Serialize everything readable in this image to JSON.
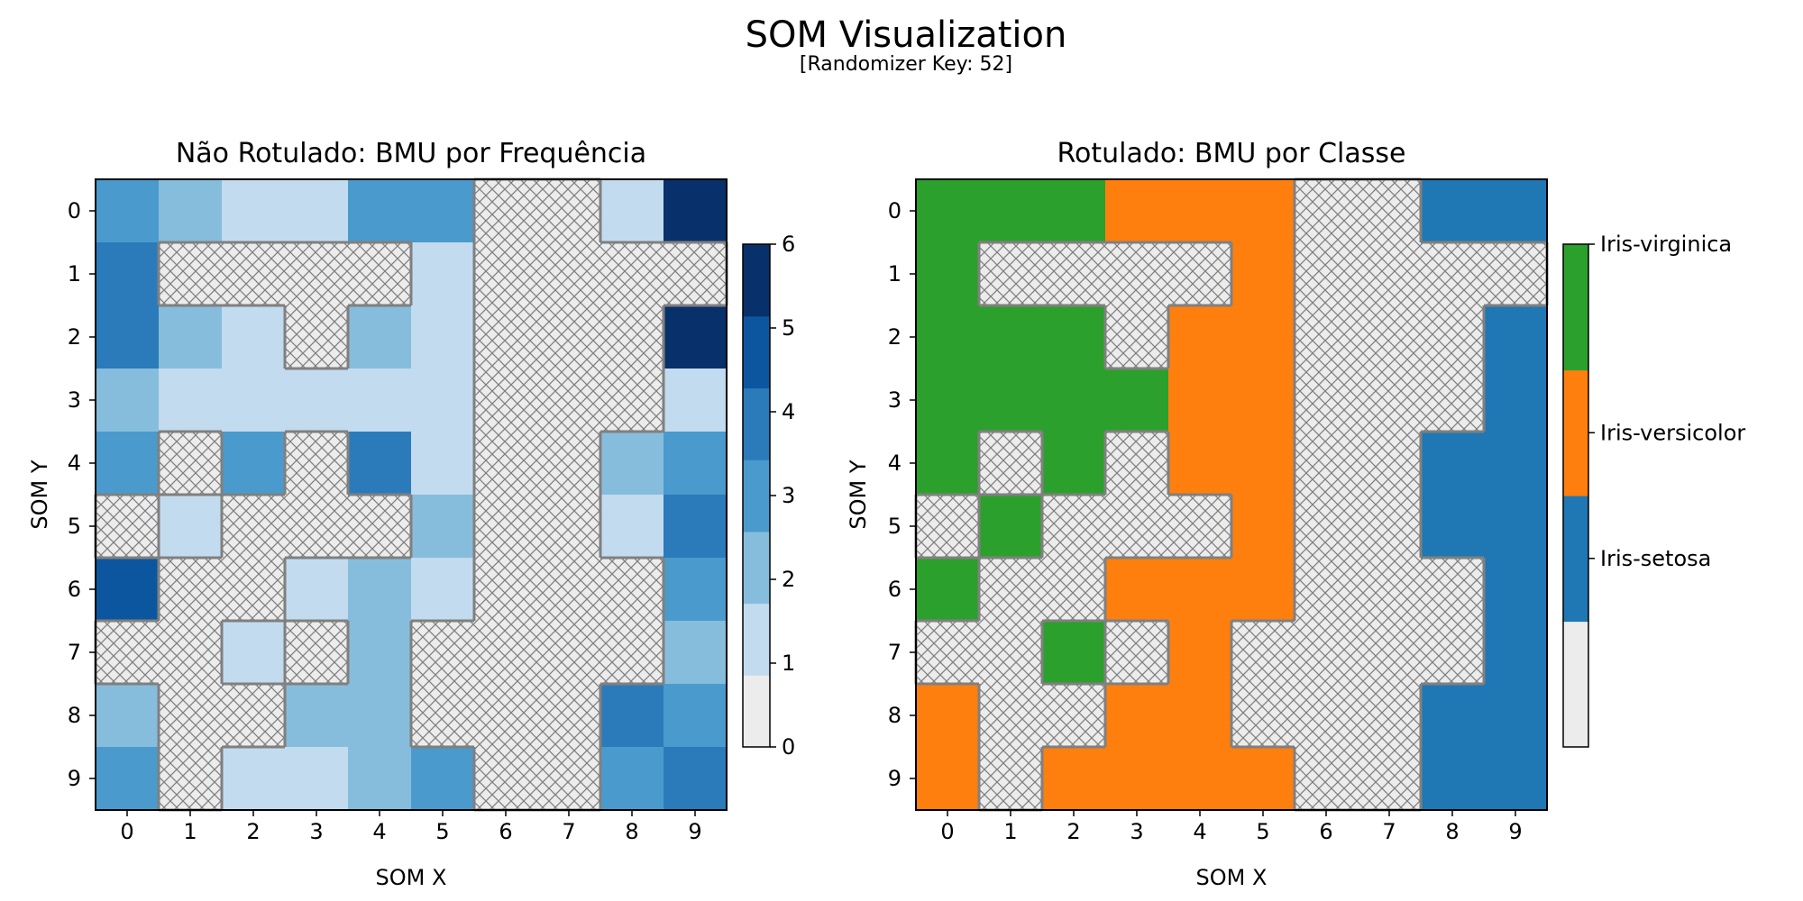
{
  "figure": {
    "title": "SOM Visualization",
    "subtitle": "[Randomizer Key: 52]"
  },
  "chart_data": [
    {
      "type": "heatmap",
      "title": "Não Rotulado: BMU por Frequência",
      "xlabel": "SOM X",
      "ylabel": "SOM Y",
      "x_ticks": [
        "0",
        "1",
        "2",
        "3",
        "4",
        "5",
        "6",
        "7",
        "8",
        "9"
      ],
      "y_ticks": [
        "0",
        "1",
        "2",
        "3",
        "4",
        "5",
        "6",
        "7",
        "8",
        "9"
      ],
      "y_inverted": true,
      "empty_value": 0,
      "empty_style": "light gray with cross-hatch",
      "values": [
        [
          3,
          2,
          1,
          1,
          3,
          3,
          0,
          0,
          1,
          6
        ],
        [
          4,
          0,
          0,
          0,
          0,
          1,
          0,
          0,
          0,
          0
        ],
        [
          4,
          2,
          1,
          0,
          2,
          1,
          0,
          0,
          0,
          6
        ],
        [
          2,
          1,
          1,
          1,
          1,
          1,
          0,
          0,
          0,
          1
        ],
        [
          3,
          0,
          3,
          0,
          4,
          1,
          0,
          0,
          2,
          3
        ],
        [
          0,
          1,
          0,
          0,
          0,
          2,
          0,
          0,
          1,
          4
        ],
        [
          5,
          0,
          0,
          1,
          2,
          1,
          0,
          0,
          0,
          3
        ],
        [
          0,
          0,
          1,
          0,
          2,
          0,
          0,
          0,
          0,
          2
        ],
        [
          2,
          0,
          0,
          2,
          2,
          0,
          0,
          0,
          4,
          3
        ],
        [
          3,
          0,
          1,
          1,
          2,
          3,
          0,
          0,
          3,
          4
        ]
      ],
      "colorbar": {
        "ticks": [
          "0",
          "1",
          "2",
          "3",
          "4",
          "5",
          "6"
        ],
        "range": [
          0,
          6
        ],
        "colors": [
          "#ececec",
          "#c2dbef",
          "#87bddc",
          "#4a9ace",
          "#2b7bba",
          "#0c56a0",
          "#08306b"
        ]
      }
    },
    {
      "type": "heatmap",
      "title": "Rotulado: BMU por Classe",
      "xlabel": "SOM X",
      "ylabel": "SOM Y",
      "x_ticks": [
        "0",
        "1",
        "2",
        "3",
        "4",
        "5",
        "6",
        "7",
        "8",
        "9"
      ],
      "y_ticks": [
        "0",
        "1",
        "2",
        "3",
        "4",
        "5",
        "6",
        "7",
        "8",
        "9"
      ],
      "y_inverted": true,
      "classes": [
        "",
        "Iris-setosa",
        "Iris-versicolor",
        "Iris-virginica"
      ],
      "class_colors": [
        "#ececec",
        "#1f77b4",
        "#ff7f0e",
        "#2ca02c"
      ],
      "values": [
        [
          3,
          3,
          3,
          2,
          2,
          2,
          0,
          0,
          1,
          1
        ],
        [
          3,
          0,
          0,
          0,
          0,
          2,
          0,
          0,
          0,
          0
        ],
        [
          3,
          3,
          3,
          0,
          2,
          2,
          0,
          0,
          0,
          1
        ],
        [
          3,
          3,
          3,
          3,
          2,
          2,
          0,
          0,
          0,
          1
        ],
        [
          3,
          0,
          3,
          0,
          2,
          2,
          0,
          0,
          1,
          1
        ],
        [
          0,
          3,
          0,
          0,
          0,
          2,
          0,
          0,
          1,
          1
        ],
        [
          3,
          0,
          0,
          2,
          2,
          2,
          0,
          0,
          0,
          1
        ],
        [
          0,
          0,
          3,
          0,
          2,
          0,
          0,
          0,
          0,
          1
        ],
        [
          2,
          0,
          0,
          2,
          2,
          0,
          0,
          0,
          1,
          1
        ],
        [
          2,
          0,
          2,
          2,
          2,
          2,
          0,
          0,
          1,
          1
        ]
      ],
      "colorbar": {
        "labels": [
          "Iris-virginica",
          "Iris-versicolor",
          "Iris-setosa"
        ]
      }
    }
  ]
}
